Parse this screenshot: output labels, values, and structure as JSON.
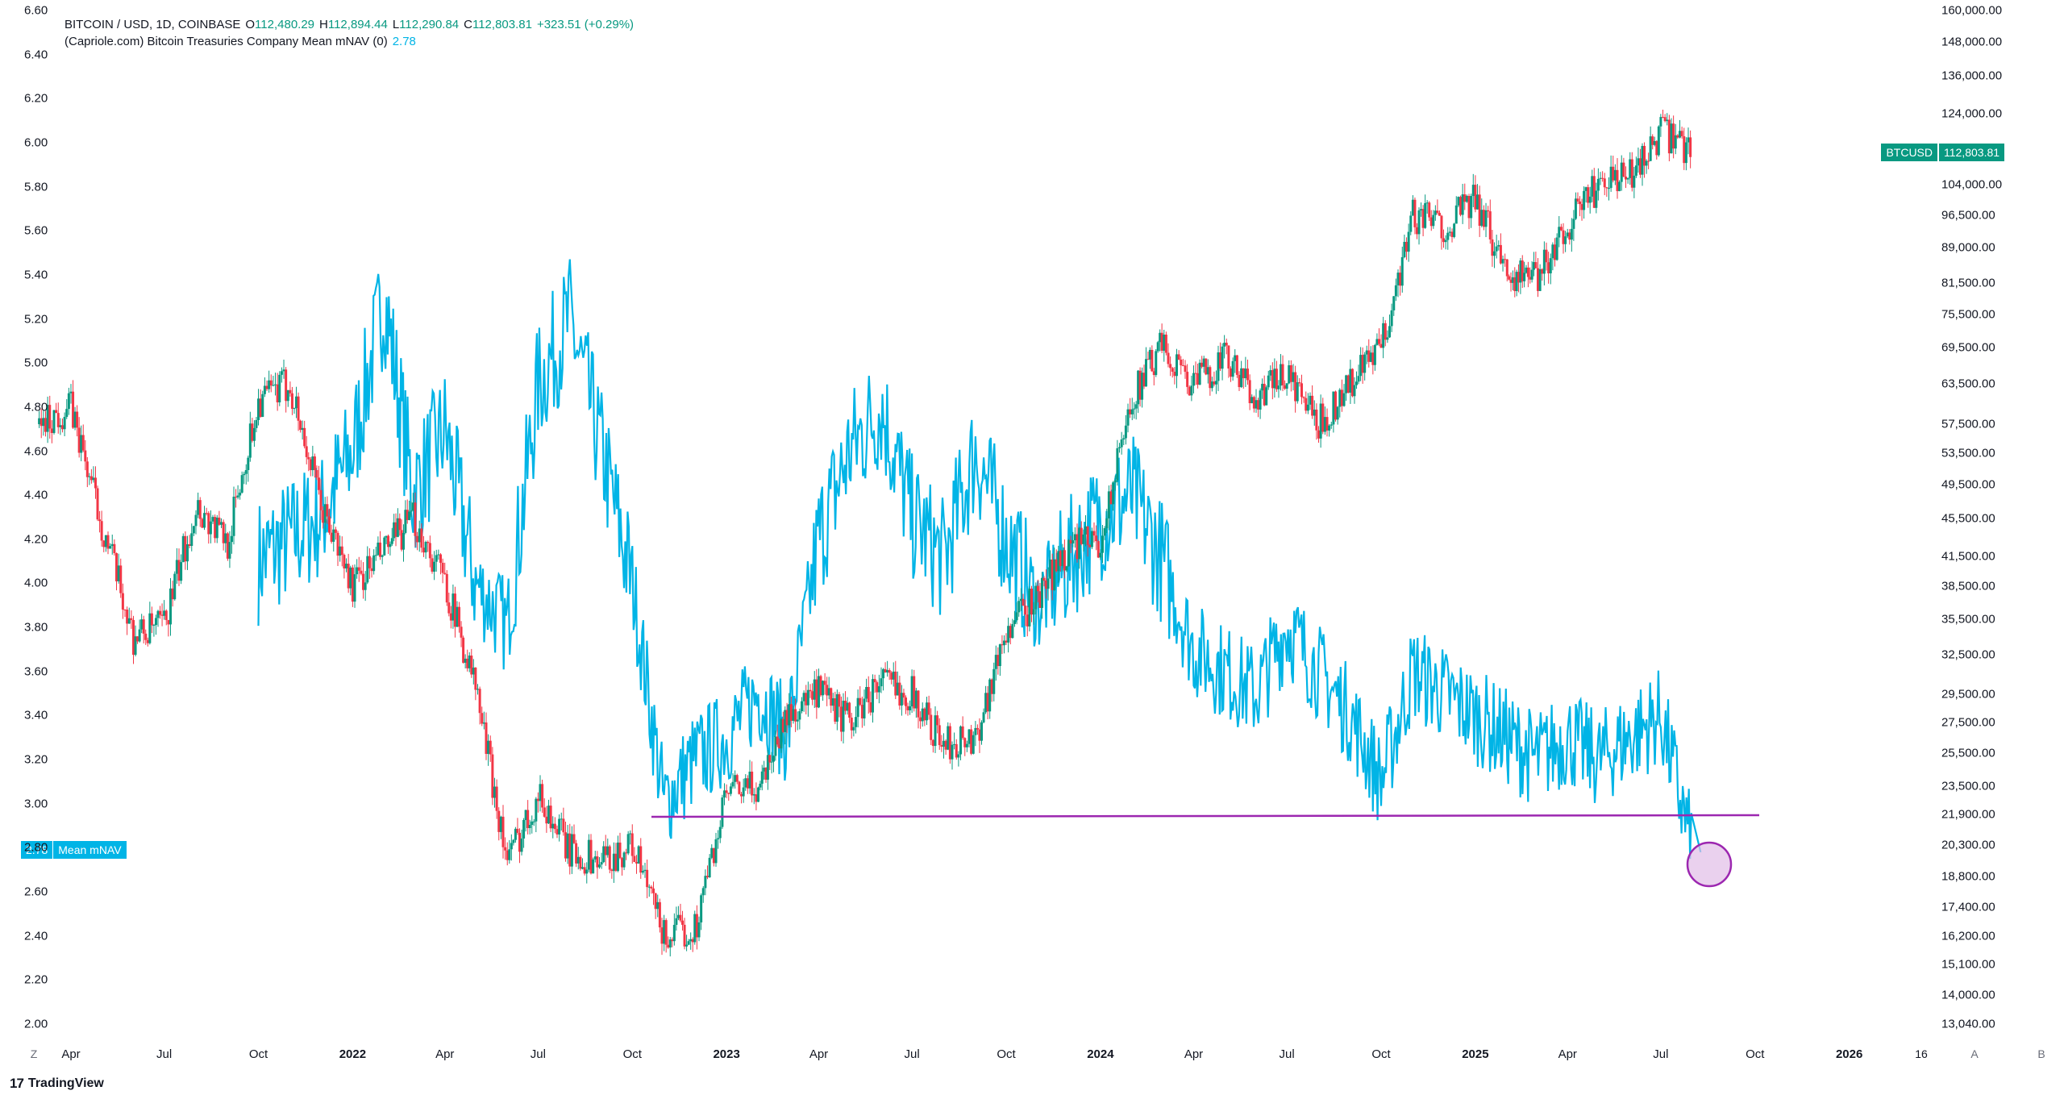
{
  "legend": {
    "symbol": "BITCOIN / USD, 1D, COINBASE",
    "o_label": "O",
    "o_value": "112,480.29",
    "h_label": "H",
    "h_value": "112,894.44",
    "l_label": "L",
    "l_value": "112,290.84",
    "c_label": "C",
    "c_value": "112,803.81",
    "change": "+323.51 (+0.29%)",
    "indicator": "(Capriole.com) Bitcoin Treasuries Company Mean mNAV (0)",
    "indicator_value": "2.78"
  },
  "badges": {
    "btc_name": "BTCUSD",
    "btc_value": "112,803.81",
    "nav_value": "2.78",
    "nav_name": "Mean mNAV"
  },
  "colors": {
    "nav_line": "#00b4e6",
    "candle_up": "#089981",
    "candle_down": "#f23645",
    "support_line": "#9c27b0",
    "highlight_circle": "#9c27b0",
    "highlight_fill": "#e1bee7"
  },
  "footer": {
    "brand": "TradingView",
    "logo_icon": "tradingview-logo-icon"
  },
  "corner_buttons": {
    "left": "Z",
    "right_a": "A",
    "right_b": "B",
    "right_16": "16"
  },
  "chart_data": [
    {
      "type": "line",
      "name": "Mean mNAV",
      "axis": "left",
      "ylim": [
        2.0,
        6.6
      ],
      "yticks": [
        "6.60",
        "6.40",
        "6.20",
        "6.00",
        "5.80",
        "5.60",
        "5.40",
        "5.20",
        "5.00",
        "4.80",
        "4.60",
        "4.40",
        "4.20",
        "4.00",
        "3.80",
        "3.60",
        "3.40",
        "3.20",
        "3.00",
        "2.80",
        "2.60",
        "2.40",
        "2.20",
        "2.00"
      ],
      "x": [
        "2021-10",
        "2021-11",
        "2021-12",
        "2022-01",
        "2022-02",
        "2022-03",
        "2022-04",
        "2022-05",
        "2022-06",
        "2022-07",
        "2022-08",
        "2022-09",
        "2022-10",
        "2022-11",
        "2022-12",
        "2023-01",
        "2023-02",
        "2023-03",
        "2023-04",
        "2023-05",
        "2023-06",
        "2023-07",
        "2023-08",
        "2023-09",
        "2023-10",
        "2023-11",
        "2023-12",
        "2024-01",
        "2024-02",
        "2024-03",
        "2024-04",
        "2024-05",
        "2024-06",
        "2024-07",
        "2024-08",
        "2024-09",
        "2024-10",
        "2024-11",
        "2024-12",
        "2025-01",
        "2025-02",
        "2025-03",
        "2025-04",
        "2025-05",
        "2025-06",
        "2025-07",
        "2025-08"
      ],
      "values": [
        4.1,
        4.2,
        4.3,
        4.6,
        5.3,
        4.4,
        4.7,
        4.0,
        3.8,
        4.9,
        5.2,
        4.6,
        4.0,
        3.0,
        3.2,
        3.3,
        3.5,
        3.3,
        4.2,
        4.6,
        4.8,
        4.3,
        4.1,
        4.6,
        4.2,
        3.9,
        4.1,
        4.3,
        4.4,
        4.1,
        3.7,
        3.6,
        3.5,
        3.8,
        3.6,
        3.4,
        3.1,
        3.6,
        3.5,
        3.4,
        3.3,
        3.2,
        3.3,
        3.2,
        3.3,
        3.4,
        2.78
      ]
    },
    {
      "type": "candlestick",
      "name": "BTCUSD",
      "axis": "right",
      "scale": "log",
      "yticks": [
        "160,000.00",
        "148,000.00",
        "136,000.00",
        "124,000.00",
        "104,000.00",
        "96,500.00",
        "89,000.00",
        "81,500.00",
        "75,500.00",
        "69,500.00",
        "63,500.00",
        "57,500.00",
        "53,500.00",
        "49,500.00",
        "45,500.00",
        "41,500.00",
        "38,500.00",
        "35,500.00",
        "32,500.00",
        "29,500.00",
        "27,500.00",
        "25,500.00",
        "23,500.00",
        "21,900.00",
        "20,300.00",
        "18,800.00",
        "17,400.00",
        "16,200.00",
        "15,100.00",
        "14,000.00",
        "13,040.00"
      ],
      "x": [
        "2021-03",
        "2021-04",
        "2021-05",
        "2021-06",
        "2021-07",
        "2021-08",
        "2021-09",
        "2021-10",
        "2021-11",
        "2021-12",
        "2022-01",
        "2022-02",
        "2022-03",
        "2022-04",
        "2022-05",
        "2022-06",
        "2022-07",
        "2022-08",
        "2022-09",
        "2022-10",
        "2022-11",
        "2022-12",
        "2023-01",
        "2023-02",
        "2023-03",
        "2023-04",
        "2023-05",
        "2023-06",
        "2023-07",
        "2023-08",
        "2023-09",
        "2023-10",
        "2023-11",
        "2023-12",
        "2024-01",
        "2024-02",
        "2024-03",
        "2024-04",
        "2024-05",
        "2024-06",
        "2024-07",
        "2024-08",
        "2024-09",
        "2024-10",
        "2024-11",
        "2024-12",
        "2025-01",
        "2025-02",
        "2025-03",
        "2025-04",
        "2025-05",
        "2025-06",
        "2025-07",
        "2025-08"
      ],
      "values": [
        57500,
        60000,
        45000,
        34000,
        35000,
        47000,
        43000,
        61000,
        63500,
        47000,
        38500,
        42000,
        45500,
        39000,
        30000,
        19500,
        23000,
        20000,
        19500,
        20300,
        16200,
        16500,
        23000,
        23500,
        28000,
        29500,
        27500,
        30500,
        29500,
        26000,
        26500,
        34500,
        37500,
        42500,
        43000,
        61500,
        69500,
        63500,
        67500,
        61500,
        65000,
        57500,
        63500,
        69500,
        96500,
        94000,
        100000,
        84000,
        82500,
        94000,
        104000,
        106000,
        118000,
        112803.81
      ]
    }
  ],
  "x_axis_labels": [
    "Apr",
    "Jul",
    "Oct",
    "2022",
    "Apr",
    "Jul",
    "Oct",
    "2023",
    "Apr",
    "Jul",
    "Oct",
    "2024",
    "Apr",
    "Jul",
    "Oct",
    "2025",
    "Apr",
    "Jul",
    "Oct",
    "2026"
  ]
}
